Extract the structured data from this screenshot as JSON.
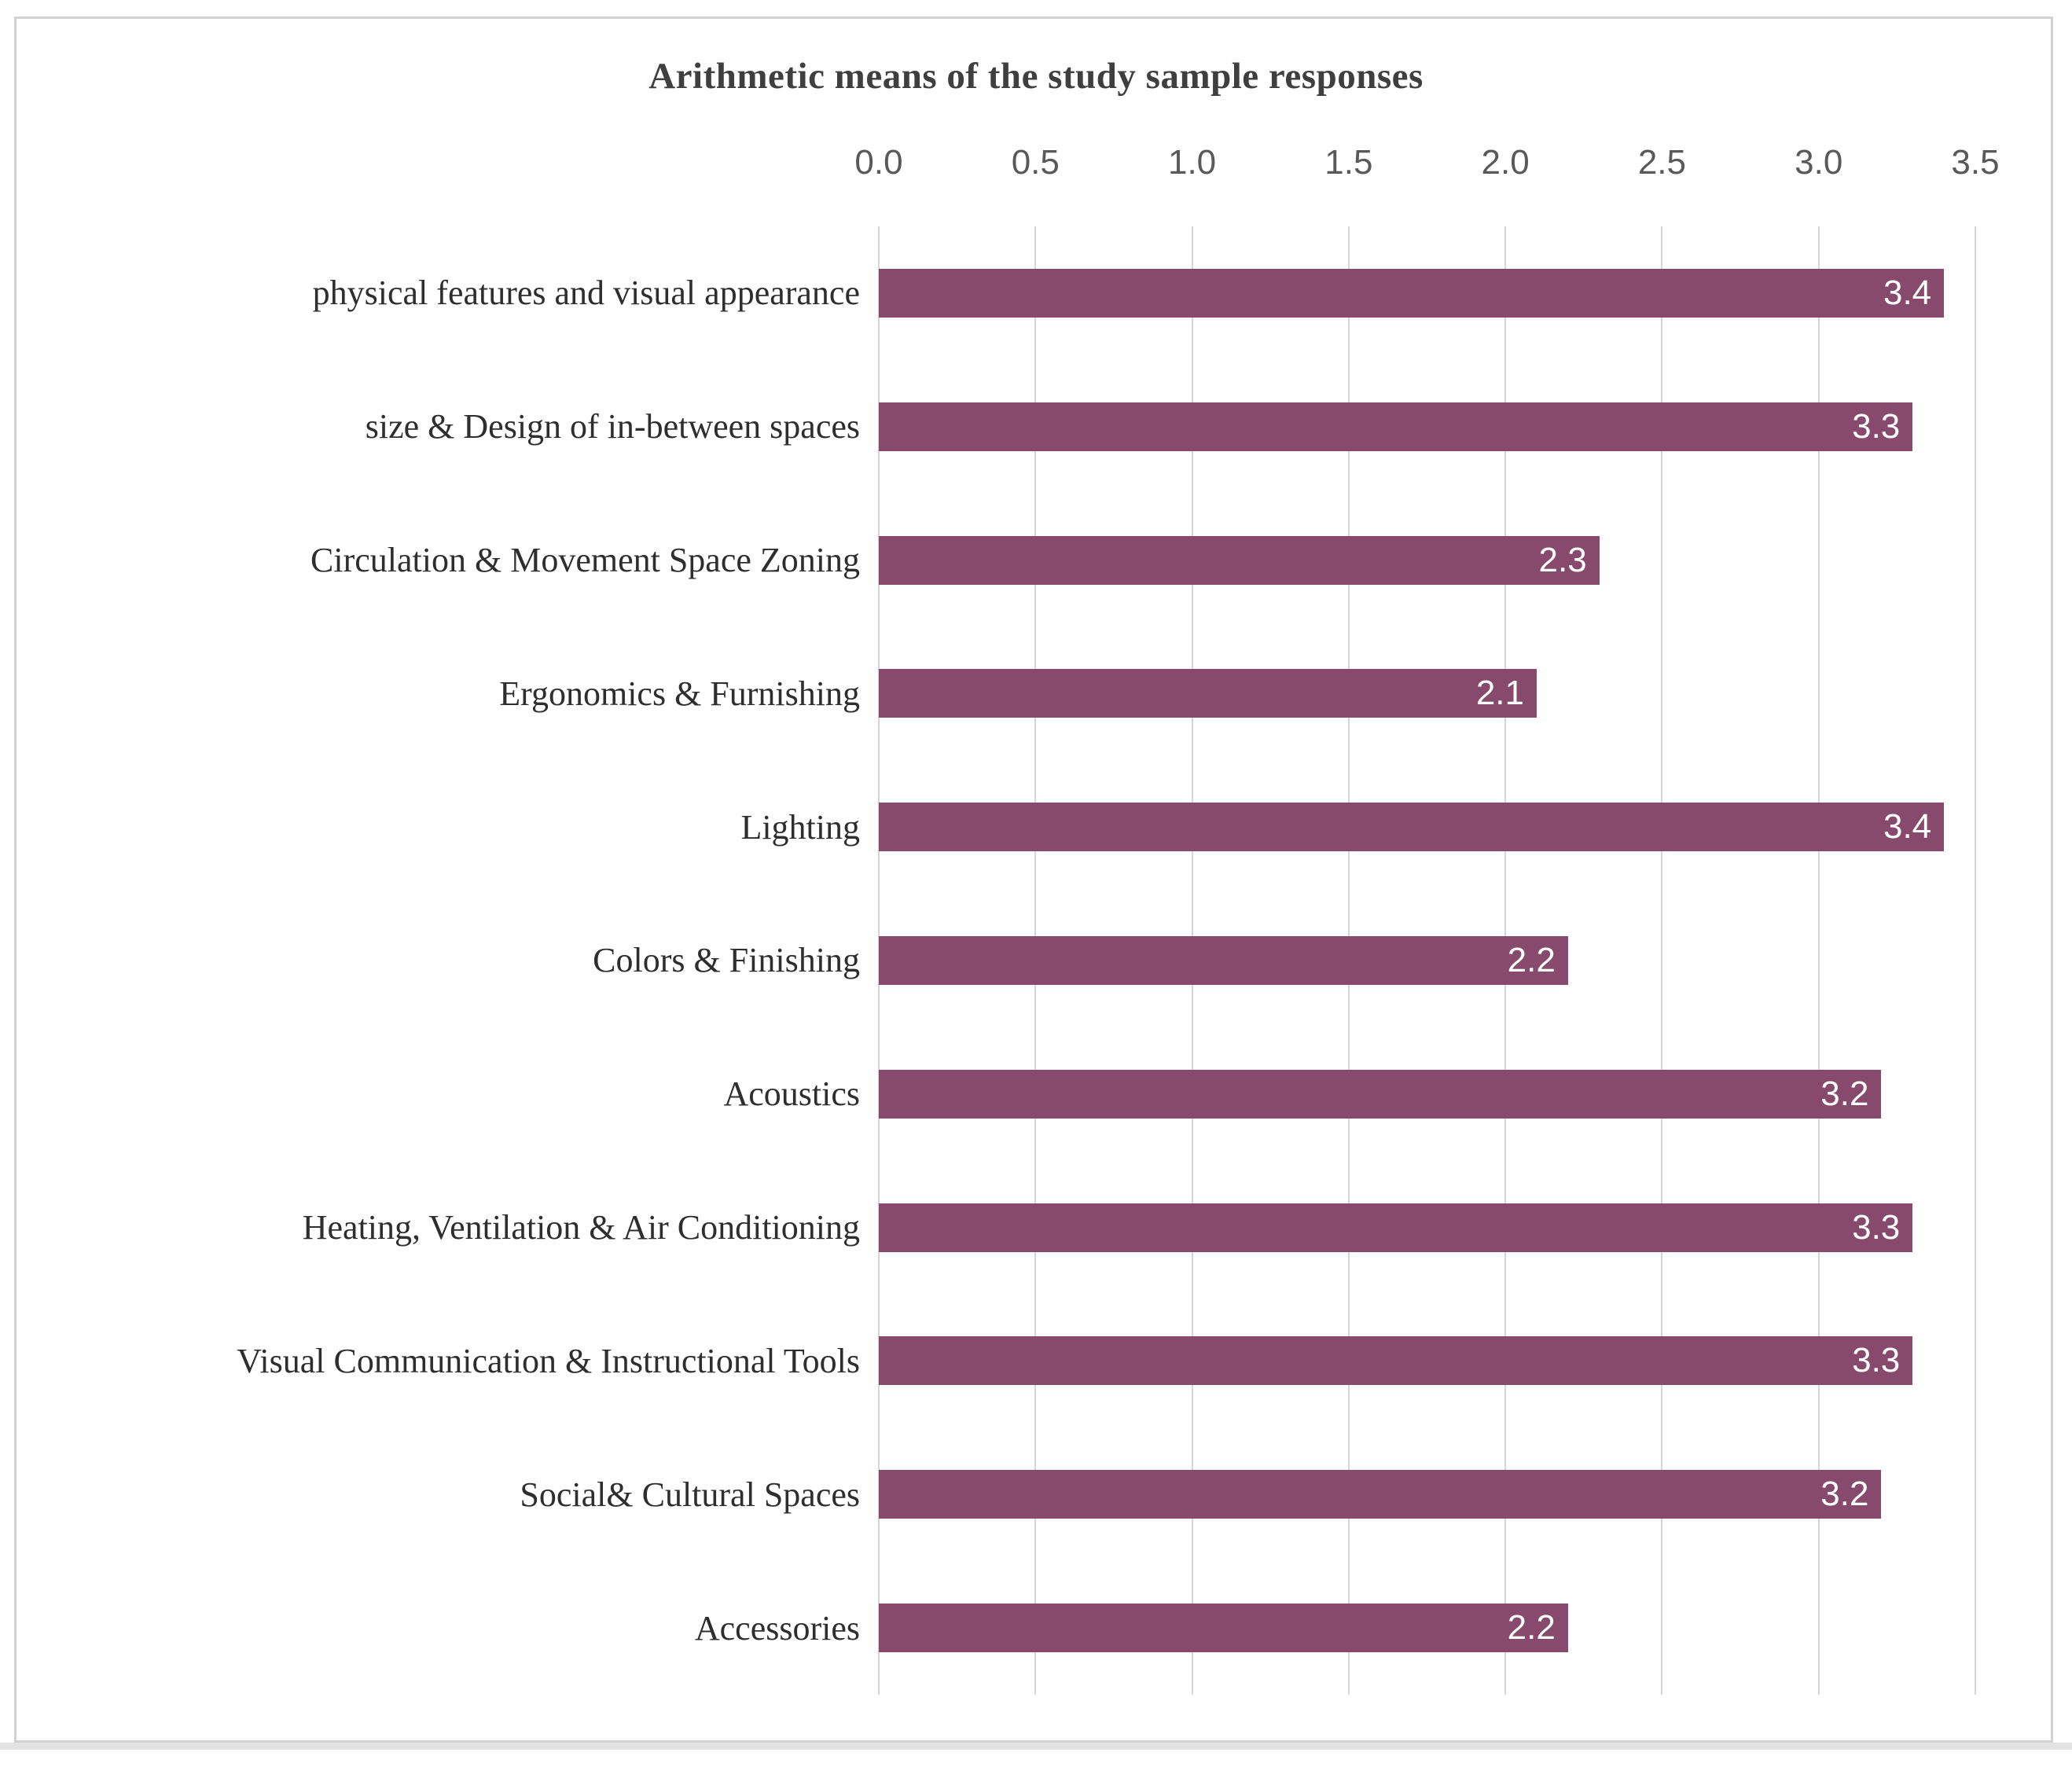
{
  "chart_data": {
    "type": "bar",
    "orientation": "horizontal",
    "title": "Arithmetic means of the study sample responses",
    "categories": [
      "physical features and visual appearance",
      "size & Design of in-between spaces",
      "Circulation & Movement Space Zoning",
      "Ergonomics & Furnishing",
      "Lighting",
      "Colors & Finishing",
      "Acoustics",
      "Heating, Ventilation & Air Conditioning",
      "Visual Communication & Instructional Tools",
      "Social& Cultural Spaces",
      "Accessories"
    ],
    "values": [
      3.4,
      3.3,
      2.3,
      2.1,
      3.4,
      2.2,
      3.2,
      3.3,
      3.3,
      3.2,
      2.2
    ],
    "value_labels": [
      "3.4",
      "3.3",
      "2.3",
      "2.1",
      "3.4",
      "2.2",
      "3.2",
      "3.3",
      "3.3",
      "3.2",
      "2.2"
    ],
    "x_ticks": [
      "0.0",
      "0.5",
      "1.0",
      "1.5",
      "2.0",
      "2.5",
      "3.0",
      "3.5"
    ],
    "xlim": [
      0,
      3.5
    ],
    "grid": true,
    "legend_position": "none",
    "bar_color": "#87496C",
    "value_label_color": "#ffffff",
    "gridline_color": "#d6d6d6",
    "tick_color": "#595959",
    "title_color": "#3f3f3f",
    "category_color": "#2e2e2e"
  }
}
